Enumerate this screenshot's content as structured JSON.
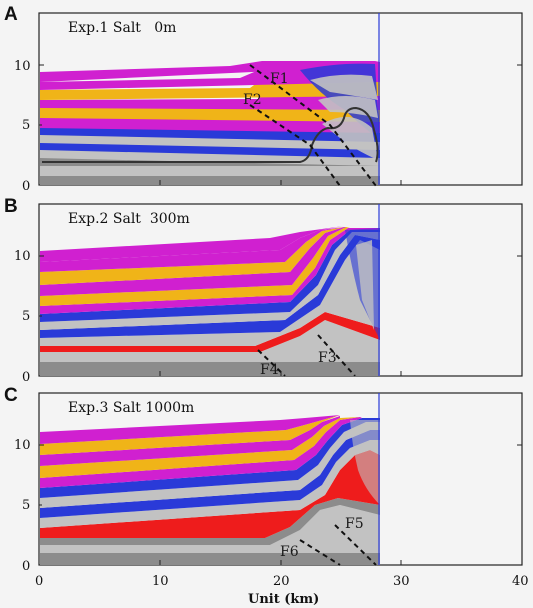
{
  "panels": [
    {
      "letter": "A",
      "title": "Exp.1 Salt   0m",
      "faults": [
        {
          "label": "F1"
        },
        {
          "label": "F2"
        }
      ],
      "y_ticks": [
        "10",
        "5",
        "0"
      ]
    },
    {
      "letter": "B",
      "title": "Exp.2 Salt  300m",
      "faults": [
        {
          "label": "F3"
        },
        {
          "label": "F4"
        }
      ],
      "y_ticks": [
        "10",
        "5",
        "0"
      ]
    },
    {
      "letter": "C",
      "title": "Exp.3 Salt 1000m",
      "faults": [
        {
          "label": "F5"
        },
        {
          "label": "F6"
        }
      ],
      "y_ticks": [
        "10",
        "5",
        "0"
      ]
    }
  ],
  "x_axis": {
    "ticks": [
      "0",
      "10",
      "20",
      "30",
      "40"
    ],
    "label": "Unit (km)",
    "range": [
      0,
      40
    ]
  },
  "y_axis": {
    "range": [
      0,
      13
    ]
  },
  "wall_x_km": 28,
  "colors": {
    "magenta": "#d020d0",
    "yellow": "#f0b418",
    "blue": "#2a3ad8",
    "grey_light": "#c2c2c2",
    "grey_dark": "#8c8c8c",
    "salt": "#ee1c1c",
    "frame": "#222222",
    "wall": "#2a3ad8"
  }
}
